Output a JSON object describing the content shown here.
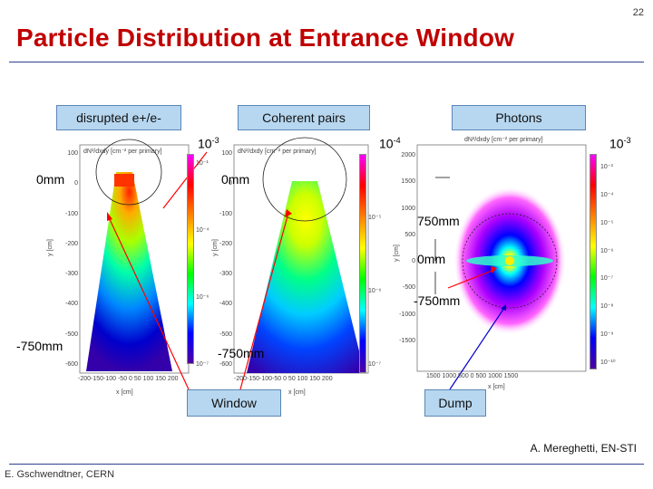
{
  "page_number": "22",
  "title": "Particle Distribution at Entrance Window",
  "labels": {
    "disrupted": "disrupted e+/e-",
    "coherent": "Coherent pairs",
    "photons": "Photons",
    "window": "Window",
    "dump": "Dump"
  },
  "annotations": {
    "zero_left": "0mm",
    "zero_mid": "0mm",
    "zero_right": "0mm",
    "minus750_left": "-750mm",
    "minus750_mid": "-750mm",
    "plus750_right": "750mm",
    "minus750_right": "-750mm",
    "cb1_base": "10",
    "cb1_exp": "-3",
    "cb2_base": "10",
    "cb2_exp": "-4",
    "cb3_base": "10",
    "cb3_exp": "-3"
  },
  "plots": {
    "plot1": {
      "header": "dN²/dxdy [cm⁻² per primary]",
      "ylabel": "y [cm]",
      "xlabel": "x [cm]",
      "yticks": [
        "100",
        "0",
        "-100",
        "-200",
        "-300",
        "-400",
        "-500",
        "-600"
      ],
      "xticks": "-200-150-100 -50  0  50 100 150 200",
      "cbticks": [
        "10⁻¹",
        "10⁻⁴",
        "10⁻⁶",
        "10⁻⁷"
      ]
    },
    "plot2": {
      "header": "dN²/dxdy [cm⁻² per primary]",
      "ylabel": "y [cm]",
      "xlabel": "x [cm]",
      "yticks": [
        "100",
        "0",
        "-100",
        "-200",
        "-300",
        "-400",
        "-500",
        "-600"
      ],
      "xticks": "-200-150-100-50  0  50 100 150 200",
      "cbticks": [
        "10⁻⁵",
        "10⁻⁶",
        "10⁻⁷"
      ]
    },
    "plot3": {
      "header": "dN²/dxdy [cm⁻² per primary]",
      "ylabel": "y [cm]",
      "xlabel": "x [cm]",
      "yticks": [
        "2000",
        "1500",
        "1000",
        "500",
        "0",
        "-500",
        "-1000",
        "-1500"
      ],
      "xticks": "1500  1000  500   0   500  1000  1500",
      "cbticks": [
        "10⁻³",
        "10⁻⁴",
        "10⁻⁵",
        "10⁻⁶",
        "10⁻⁷",
        "10⁻⁸",
        "10⁻⁹",
        "10⁻¹⁰"
      ]
    }
  },
  "credit": "A. Mereghetti, EN-STI",
  "footer": "E. Gschwendtner, CERN",
  "colors": {
    "title": "#c00000",
    "label_fill": "#b7d7f0",
    "arrow": "#ff0000",
    "dump_arrow": "#0000cc",
    "rule": "#2f3f8f"
  }
}
